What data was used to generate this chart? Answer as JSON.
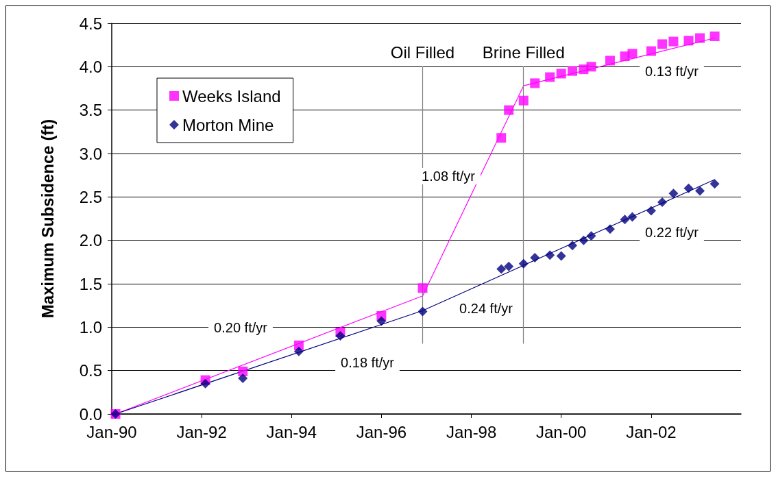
{
  "chart_data": {
    "type": "scatter",
    "ylabel": "Maximum Subsidence (ft)",
    "xlim": [
      "1990-01",
      "2004-01"
    ],
    "xticks": [
      {
        "value": "1990-01",
        "label": "Jan-90"
      },
      {
        "value": "1992-01",
        "label": "Jan-92"
      },
      {
        "value": "1994-01",
        "label": "Jan-94"
      },
      {
        "value": "1996-01",
        "label": "Jan-96"
      },
      {
        "value": "1998-01",
        "label": "Jan-98"
      },
      {
        "value": "2000-01",
        "label": "Jan-00"
      },
      {
        "value": "2002-01",
        "label": "Jan-02"
      }
    ],
    "ylim": [
      0,
      4.5
    ],
    "yticks": [
      {
        "value": 0,
        "label": "0.0"
      },
      {
        "value": 0.5,
        "label": "0.5"
      },
      {
        "value": 1,
        "label": "1.0"
      },
      {
        "value": 1.5,
        "label": "1.5"
      },
      {
        "value": 2,
        "label": "2.0"
      },
      {
        "value": 2.5,
        "label": "2.5"
      },
      {
        "value": 3,
        "label": "3.0"
      },
      {
        "value": 3.5,
        "label": "3.5"
      },
      {
        "value": 4,
        "label": "4.0"
      },
      {
        "value": 4.5,
        "label": "4.5"
      }
    ],
    "grid": "y",
    "legend": "top left",
    "series": [
      {
        "name": "Weeks Island",
        "color": "#ff00ff",
        "marker": "square",
        "x": [
          "1990-02",
          "1992-02",
          "1992-12",
          "1994-03",
          "1995-02",
          "1996-01",
          "1996-12",
          "1998-09",
          "1998-11",
          "1999-03",
          "1999-06",
          "1999-10",
          "2000-01",
          "2000-04",
          "2000-07",
          "2000-09",
          "2001-02",
          "2001-06",
          "2001-08",
          "2002-01",
          "2002-04",
          "2002-07",
          "2002-11",
          "2003-02",
          "2003-06"
        ],
        "values": [
          0,
          0.39,
          0.49,
          0.79,
          0.94,
          1.13,
          1.45,
          3.18,
          3.5,
          3.61,
          3.81,
          3.88,
          3.92,
          3.95,
          3.97,
          4.0,
          4.07,
          4.12,
          4.15,
          4.18,
          4.26,
          4.29,
          4.3,
          4.33,
          4.35
        ]
      },
      {
        "name": "Morton Mine",
        "color": "#000080",
        "marker": "diamond",
        "x": [
          "1990-02",
          "1992-02",
          "1992-12",
          "1994-03",
          "1995-02",
          "1996-01",
          "1996-12",
          "1998-09",
          "1998-11",
          "1999-03",
          "1999-06",
          "1999-10",
          "2000-01",
          "2000-04",
          "2000-07",
          "2000-09",
          "2001-02",
          "2001-06",
          "2001-08",
          "2002-01",
          "2002-04",
          "2002-07",
          "2002-11",
          "2003-02",
          "2003-06"
        ],
        "values": [
          0,
          0.35,
          0.41,
          0.72,
          0.9,
          1.07,
          1.18,
          1.67,
          1.7,
          1.73,
          1.8,
          1.83,
          1.82,
          1.94,
          2.0,
          2.05,
          2.13,
          2.24,
          2.27,
          2.34,
          2.44,
          2.54,
          2.6,
          2.57,
          2.65
        ]
      },
      {
        "type": "line",
        "color": "#ff00ff",
        "marker": "none",
        "x": [
          "1990-02",
          "1996-12",
          "1999-03",
          "2003-06"
        ],
        "values": [
          0,
          1.36,
          3.78,
          4.33
        ]
      },
      {
        "type": "line",
        "color": "#000080",
        "marker": "none",
        "x": [
          "1990-02",
          "1996-12",
          "2003-06"
        ],
        "values": [
          0,
          1.19,
          2.7
        ]
      }
    ],
    "ref_lines": [
      {
        "axis": "x",
        "value": "1996-12",
        "label": "Oil Filled",
        "color": "#808080"
      },
      {
        "axis": "x",
        "value": "1999-03",
        "label": "Brine Filled",
        "color": "#808080"
      }
    ],
    "annotations": [
      "0.20 ft/yr",
      "0.18 ft/yr",
      "1.08 ft/yr",
      "0.24 ft/yr",
      "0.13 ft/yr",
      "0.22 ft/yr"
    ]
  }
}
